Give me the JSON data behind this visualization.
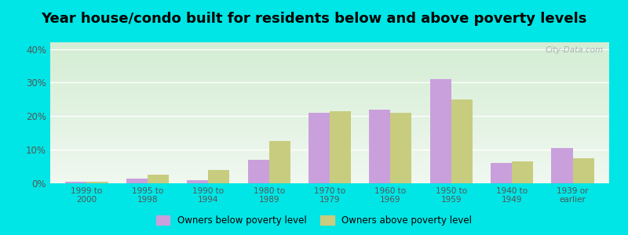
{
  "title": "Year house/condo built for residents below and above poverty levels",
  "categories": [
    "1999 to\n2000",
    "1995 to\n1998",
    "1990 to\n1994",
    "1980 to\n1989",
    "1970 to\n1979",
    "1960 to\n1969",
    "1950 to\n1959",
    "1940 to\n1949",
    "1939 or\nearlier"
  ],
  "below_poverty": [
    0.5,
    1.5,
    1.0,
    7.0,
    21.0,
    22.0,
    31.0,
    6.0,
    10.5
  ],
  "above_poverty": [
    0.5,
    2.5,
    4.0,
    12.5,
    21.5,
    21.0,
    25.0,
    6.5,
    7.5
  ],
  "below_color": "#c9a0dc",
  "above_color": "#c8cc7f",
  "bg_top_color": "#d4edd4",
  "bg_bottom_color": "#f0f8f0",
  "outer_background": "#00e5e5",
  "ylim": [
    0,
    42
  ],
  "yticks": [
    0,
    10,
    20,
    30,
    40
  ],
  "ytick_labels": [
    "0%",
    "10%",
    "20%",
    "30%",
    "40%"
  ],
  "legend_below": "Owners below poverty level",
  "legend_above": "Owners above poverty level",
  "title_fontsize": 13,
  "bar_width": 0.35,
  "watermark": "City-Data.com"
}
